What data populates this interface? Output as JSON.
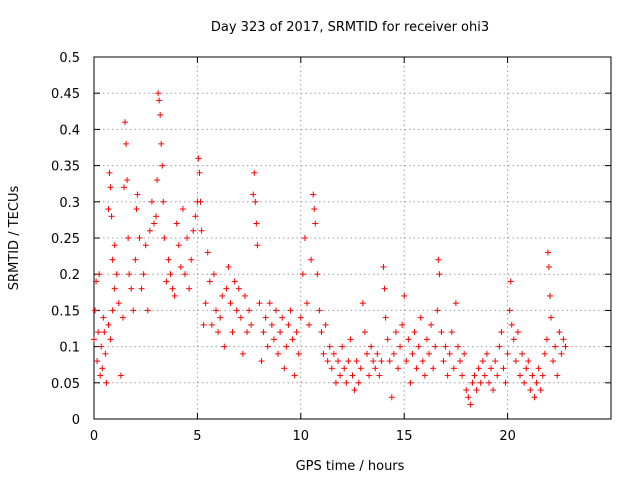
{
  "chart_data": {
    "type": "scatter",
    "title": "Day 323 of 2017, SRMTID for receiver ohi3",
    "xlabel": "GPS time / hours",
    "ylabel": "SRMTID / TECUs",
    "xlim": [
      0,
      25
    ],
    "ylim": [
      0,
      0.5
    ],
    "x_ticks": [
      0,
      5,
      10,
      15,
      20
    ],
    "x_tick_labels": [
      "0",
      "5",
      "10",
      "15",
      "20"
    ],
    "y_ticks": [
      0,
      0.05,
      0.1,
      0.15,
      0.2,
      0.25,
      0.3,
      0.35,
      0.4,
      0.45,
      0.5
    ],
    "y_tick_labels": [
      "0",
      "0.05",
      "0.1",
      "0.15",
      "0.2",
      "0.25",
      "0.3",
      "0.35",
      "0.4",
      "0.45",
      "0.5"
    ],
    "grid": true,
    "marker": "+",
    "marker_color": "#ff0000",
    "series": [
      {
        "name": "SRMTID",
        "points": [
          [
            0.0,
            0.11
          ],
          [
            0.05,
            0.15
          ],
          [
            0.1,
            0.19
          ],
          [
            0.15,
            0.08
          ],
          [
            0.2,
            0.12
          ],
          [
            0.25,
            0.2
          ],
          [
            0.3,
            0.06
          ],
          [
            0.35,
            0.1
          ],
          [
            0.4,
            0.07
          ],
          [
            0.45,
            0.14
          ],
          [
            0.5,
            0.12
          ],
          [
            0.55,
            0.09
          ],
          [
            0.6,
            0.05
          ],
          [
            0.7,
            0.13
          ],
          [
            0.8,
            0.11
          ],
          [
            0.9,
            0.15
          ],
          [
            1.0,
            0.18
          ],
          [
            0.7,
            0.29
          ],
          [
            0.75,
            0.34
          ],
          [
            0.8,
            0.32
          ],
          [
            0.85,
            0.28
          ],
          [
            0.9,
            0.22
          ],
          [
            1.0,
            0.24
          ],
          [
            1.1,
            0.2
          ],
          [
            1.2,
            0.16
          ],
          [
            1.3,
            0.06
          ],
          [
            1.4,
            0.14
          ],
          [
            1.45,
            0.32
          ],
          [
            1.5,
            0.41
          ],
          [
            1.55,
            0.38
          ],
          [
            1.6,
            0.33
          ],
          [
            1.65,
            0.25
          ],
          [
            1.7,
            0.2
          ],
          [
            1.8,
            0.18
          ],
          [
            1.9,
            0.15
          ],
          [
            2.0,
            0.22
          ],
          [
            2.05,
            0.29
          ],
          [
            2.1,
            0.31
          ],
          [
            2.2,
            0.25
          ],
          [
            2.3,
            0.18
          ],
          [
            2.4,
            0.2
          ],
          [
            2.5,
            0.24
          ],
          [
            2.6,
            0.15
          ],
          [
            2.7,
            0.26
          ],
          [
            2.8,
            0.3
          ],
          [
            2.9,
            0.27
          ],
          [
            3.0,
            0.28
          ],
          [
            3.05,
            0.33
          ],
          [
            3.1,
            0.45
          ],
          [
            3.15,
            0.44
          ],
          [
            3.2,
            0.42
          ],
          [
            3.25,
            0.38
          ],
          [
            3.3,
            0.35
          ],
          [
            3.35,
            0.3
          ],
          [
            3.4,
            0.25
          ],
          [
            3.5,
            0.19
          ],
          [
            3.6,
            0.22
          ],
          [
            3.7,
            0.2
          ],
          [
            3.8,
            0.18
          ],
          [
            3.9,
            0.17
          ],
          [
            4.0,
            0.27
          ],
          [
            4.1,
            0.24
          ],
          [
            4.2,
            0.21
          ],
          [
            4.3,
            0.29
          ],
          [
            4.4,
            0.2
          ],
          [
            4.5,
            0.25
          ],
          [
            4.6,
            0.18
          ],
          [
            4.7,
            0.22
          ],
          [
            4.8,
            0.26
          ],
          [
            4.9,
            0.28
          ],
          [
            5.0,
            0.3
          ],
          [
            5.05,
            0.36
          ],
          [
            5.1,
            0.34
          ],
          [
            5.15,
            0.3
          ],
          [
            5.2,
            0.26
          ],
          [
            5.3,
            0.13
          ],
          [
            5.4,
            0.16
          ],
          [
            5.5,
            0.23
          ],
          [
            5.6,
            0.19
          ],
          [
            5.7,
            0.13
          ],
          [
            5.8,
            0.2
          ],
          [
            5.9,
            0.15
          ],
          [
            6.0,
            0.12
          ],
          [
            6.1,
            0.14
          ],
          [
            6.2,
            0.17
          ],
          [
            6.3,
            0.1
          ],
          [
            6.4,
            0.18
          ],
          [
            6.5,
            0.21
          ],
          [
            6.6,
            0.16
          ],
          [
            6.7,
            0.12
          ],
          [
            6.8,
            0.19
          ],
          [
            6.9,
            0.15
          ],
          [
            7.0,
            0.18
          ],
          [
            7.1,
            0.14
          ],
          [
            7.2,
            0.09
          ],
          [
            7.3,
            0.17
          ],
          [
            7.4,
            0.12
          ],
          [
            7.5,
            0.15
          ],
          [
            7.6,
            0.13
          ],
          [
            7.7,
            0.31
          ],
          [
            7.75,
            0.34
          ],
          [
            7.8,
            0.3
          ],
          [
            7.85,
            0.27
          ],
          [
            7.9,
            0.24
          ],
          [
            8.0,
            0.16
          ],
          [
            8.1,
            0.08
          ],
          [
            8.2,
            0.12
          ],
          [
            8.3,
            0.14
          ],
          [
            8.4,
            0.1
          ],
          [
            8.5,
            0.16
          ],
          [
            8.6,
            0.13
          ],
          [
            8.7,
            0.11
          ],
          [
            8.8,
            0.15
          ],
          [
            8.9,
            0.09
          ],
          [
            9.0,
            0.12
          ],
          [
            9.1,
            0.14
          ],
          [
            9.2,
            0.07
          ],
          [
            9.3,
            0.1
          ],
          [
            9.4,
            0.13
          ],
          [
            9.5,
            0.15
          ],
          [
            9.6,
            0.11
          ],
          [
            9.7,
            0.06
          ],
          [
            9.8,
            0.12
          ],
          [
            9.9,
            0.09
          ],
          [
            10.0,
            0.14
          ],
          [
            10.1,
            0.2
          ],
          [
            10.2,
            0.25
          ],
          [
            10.3,
            0.16
          ],
          [
            10.4,
            0.13
          ],
          [
            10.5,
            0.22
          ],
          [
            10.6,
            0.31
          ],
          [
            10.65,
            0.29
          ],
          [
            10.7,
            0.27
          ],
          [
            10.8,
            0.2
          ],
          [
            10.9,
            0.15
          ],
          [
            11.0,
            0.12
          ],
          [
            11.1,
            0.09
          ],
          [
            11.2,
            0.13
          ],
          [
            11.3,
            0.08
          ],
          [
            11.4,
            0.1
          ],
          [
            11.5,
            0.07
          ],
          [
            11.6,
            0.09
          ],
          [
            11.7,
            0.05
          ],
          [
            11.8,
            0.08
          ],
          [
            11.9,
            0.06
          ],
          [
            12.0,
            0.1
          ],
          [
            12.1,
            0.07
          ],
          [
            12.2,
            0.05
          ],
          [
            12.3,
            0.08
          ],
          [
            12.4,
            0.11
          ],
          [
            12.5,
            0.06
          ],
          [
            12.6,
            0.04
          ],
          [
            12.7,
            0.08
          ],
          [
            12.8,
            0.05
          ],
          [
            12.9,
            0.07
          ],
          [
            13.0,
            0.16
          ],
          [
            13.1,
            0.12
          ],
          [
            13.2,
            0.09
          ],
          [
            13.3,
            0.06
          ],
          [
            13.4,
            0.1
          ],
          [
            13.5,
            0.08
          ],
          [
            13.6,
            0.07
          ],
          [
            13.7,
            0.09
          ],
          [
            13.8,
            0.06
          ],
          [
            13.9,
            0.08
          ],
          [
            14.0,
            0.21
          ],
          [
            14.05,
            0.18
          ],
          [
            14.1,
            0.14
          ],
          [
            14.2,
            0.11
          ],
          [
            14.3,
            0.08
          ],
          [
            14.4,
            0.03
          ],
          [
            14.5,
            0.09
          ],
          [
            14.6,
            0.12
          ],
          [
            14.7,
            0.07
          ],
          [
            14.8,
            0.1
          ],
          [
            14.9,
            0.13
          ],
          [
            15.0,
            0.17
          ],
          [
            15.1,
            0.08
          ],
          [
            15.2,
            0.11
          ],
          [
            15.3,
            0.05
          ],
          [
            15.4,
            0.09
          ],
          [
            15.5,
            0.12
          ],
          [
            15.6,
            0.07
          ],
          [
            15.7,
            0.1
          ],
          [
            15.8,
            0.14
          ],
          [
            15.9,
            0.08
          ],
          [
            16.0,
            0.06
          ],
          [
            16.1,
            0.11
          ],
          [
            16.2,
            0.09
          ],
          [
            16.3,
            0.13
          ],
          [
            16.4,
            0.07
          ],
          [
            16.5,
            0.1
          ],
          [
            16.6,
            0.15
          ],
          [
            16.65,
            0.22
          ],
          [
            16.7,
            0.2
          ],
          [
            16.8,
            0.12
          ],
          [
            16.9,
            0.08
          ],
          [
            17.0,
            0.1
          ],
          [
            17.1,
            0.06
          ],
          [
            17.2,
            0.09
          ],
          [
            17.3,
            0.12
          ],
          [
            17.4,
            0.07
          ],
          [
            17.5,
            0.16
          ],
          [
            17.6,
            0.1
          ],
          [
            17.7,
            0.08
          ],
          [
            17.8,
            0.06
          ],
          [
            17.9,
            0.09
          ],
          [
            18.0,
            0.04
          ],
          [
            18.1,
            0.03
          ],
          [
            18.2,
            0.02
          ],
          [
            18.3,
            0.05
          ],
          [
            18.4,
            0.06
          ],
          [
            18.5,
            0.04
          ],
          [
            18.6,
            0.07
          ],
          [
            18.7,
            0.05
          ],
          [
            18.8,
            0.08
          ],
          [
            18.9,
            0.06
          ],
          [
            19.0,
            0.09
          ],
          [
            19.1,
            0.05
          ],
          [
            19.2,
            0.07
          ],
          [
            19.3,
            0.04
          ],
          [
            19.4,
            0.08
          ],
          [
            19.5,
            0.06
          ],
          [
            19.6,
            0.1
          ],
          [
            19.7,
            0.12
          ],
          [
            19.8,
            0.07
          ],
          [
            19.9,
            0.05
          ],
          [
            20.0,
            0.09
          ],
          [
            20.1,
            0.15
          ],
          [
            20.15,
            0.19
          ],
          [
            20.2,
            0.13
          ],
          [
            20.3,
            0.11
          ],
          [
            20.4,
            0.08
          ],
          [
            20.5,
            0.12
          ],
          [
            20.6,
            0.06
          ],
          [
            20.7,
            0.09
          ],
          [
            20.8,
            0.05
          ],
          [
            20.9,
            0.07
          ],
          [
            21.0,
            0.08
          ],
          [
            21.1,
            0.04
          ],
          [
            21.2,
            0.06
          ],
          [
            21.3,
            0.03
          ],
          [
            21.4,
            0.05
          ],
          [
            21.5,
            0.07
          ],
          [
            21.6,
            0.04
          ],
          [
            21.7,
            0.06
          ],
          [
            21.8,
            0.09
          ],
          [
            21.9,
            0.11
          ],
          [
            21.95,
            0.23
          ],
          [
            22.0,
            0.21
          ],
          [
            22.05,
            0.17
          ],
          [
            22.1,
            0.14
          ],
          [
            22.2,
            0.08
          ],
          [
            22.3,
            0.1
          ],
          [
            22.4,
            0.06
          ],
          [
            22.5,
            0.12
          ],
          [
            22.6,
            0.09
          ],
          [
            22.7,
            0.11
          ],
          [
            22.8,
            0.1
          ]
        ]
      }
    ]
  }
}
